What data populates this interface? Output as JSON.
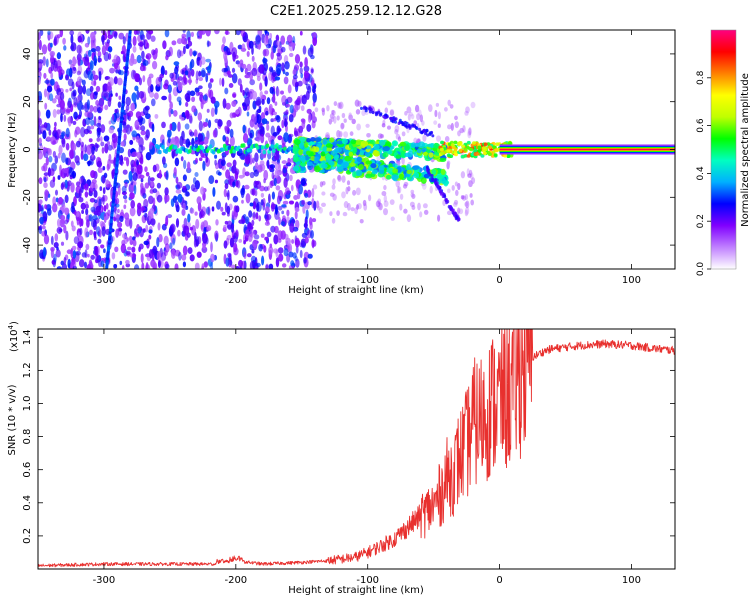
{
  "title": "C2E1.2025.259.12.12.G28",
  "chart_data": [
    {
      "type": "heatmap",
      "name": "spectrogram",
      "xlabel": "Height of straight line (km)",
      "ylabel": "Frequency (Hz)",
      "xlim": [
        -350,
        133
      ],
      "ylim": [
        -50,
        50
      ],
      "xticks": [
        -300,
        -200,
        -100,
        0,
        100
      ],
      "yticks": [
        -40,
        -20,
        0,
        20,
        40
      ],
      "colorbar": {
        "label": "Normalized spectral amplitude",
        "range": [
          0,
          1
        ],
        "ticks": [
          0.0,
          0.2,
          0.4,
          0.6,
          0.8
        ],
        "tick_labels": [
          "0.0",
          "0.2",
          "0.4",
          "0.6",
          "0.8"
        ],
        "colors": [
          "#ffffff",
          "#c080ff",
          "#8000ff",
          "#0000ff",
          "#00b0ff",
          "#00ffc0",
          "#00ff00",
          "#c0ff00",
          "#ffff00",
          "#ff8000",
          "#ff0000",
          "#ff0080"
        ]
      },
      "features": {
        "noise_region_x": [
          -350,
          -140
        ],
        "faint_region_x": [
          -140,
          -20
        ],
        "carrier_frequency": 0,
        "diagonal_trace": {
          "x": [
            -298,
            -280
          ],
          "y": [
            -50,
            50
          ]
        },
        "gap_columns_x": [
          -218,
          -210
        ]
      }
    },
    {
      "type": "line",
      "name": "snr",
      "xlabel": "Height of straight line (km)",
      "ylabel": "SNR (10 * v/v)",
      "multiplier_label": "(x10",
      "multiplier_exp": "4",
      "multiplier_close": ")",
      "xlim": [
        -350,
        133
      ],
      "ylim": [
        0,
        1.45
      ],
      "xticks": [
        -300,
        -200,
        -100,
        0,
        100
      ],
      "yticks": [
        0.2,
        0.4,
        0.6,
        0.8,
        1.0,
        1.2,
        1.4
      ],
      "ytick_labels": [
        "0.2",
        "0.4",
        "0.6",
        "0.8",
        "1.0",
        "1.2",
        "1.4"
      ],
      "line_color": "#e8302e",
      "series": [
        {
          "name": "SNR",
          "x": [
            -350,
            -300,
            -250,
            -210,
            -200,
            -180,
            -150,
            -130,
            -110,
            -100,
            -90,
            -80,
            -70,
            -60,
            -50,
            -45,
            -40,
            -35,
            -30,
            -25,
            -20,
            -15,
            -10,
            -5,
            0,
            5,
            10,
            15,
            20,
            25,
            30,
            35,
            40,
            60,
            80,
            100,
            120,
            133
          ],
          "values": [
            0.02,
            0.03,
            0.03,
            0.03,
            0.05,
            0.03,
            0.04,
            0.05,
            0.07,
            0.1,
            0.14,
            0.18,
            0.25,
            0.32,
            0.38,
            0.45,
            0.55,
            0.58,
            0.68,
            0.75,
            0.88,
            0.9,
            0.95,
            1.0,
            1.02,
            1.05,
            1.1,
            1.2,
            1.25,
            1.28,
            1.3,
            1.32,
            1.33,
            1.35,
            1.36,
            1.35,
            1.33,
            1.32
          ]
        }
      ]
    }
  ]
}
